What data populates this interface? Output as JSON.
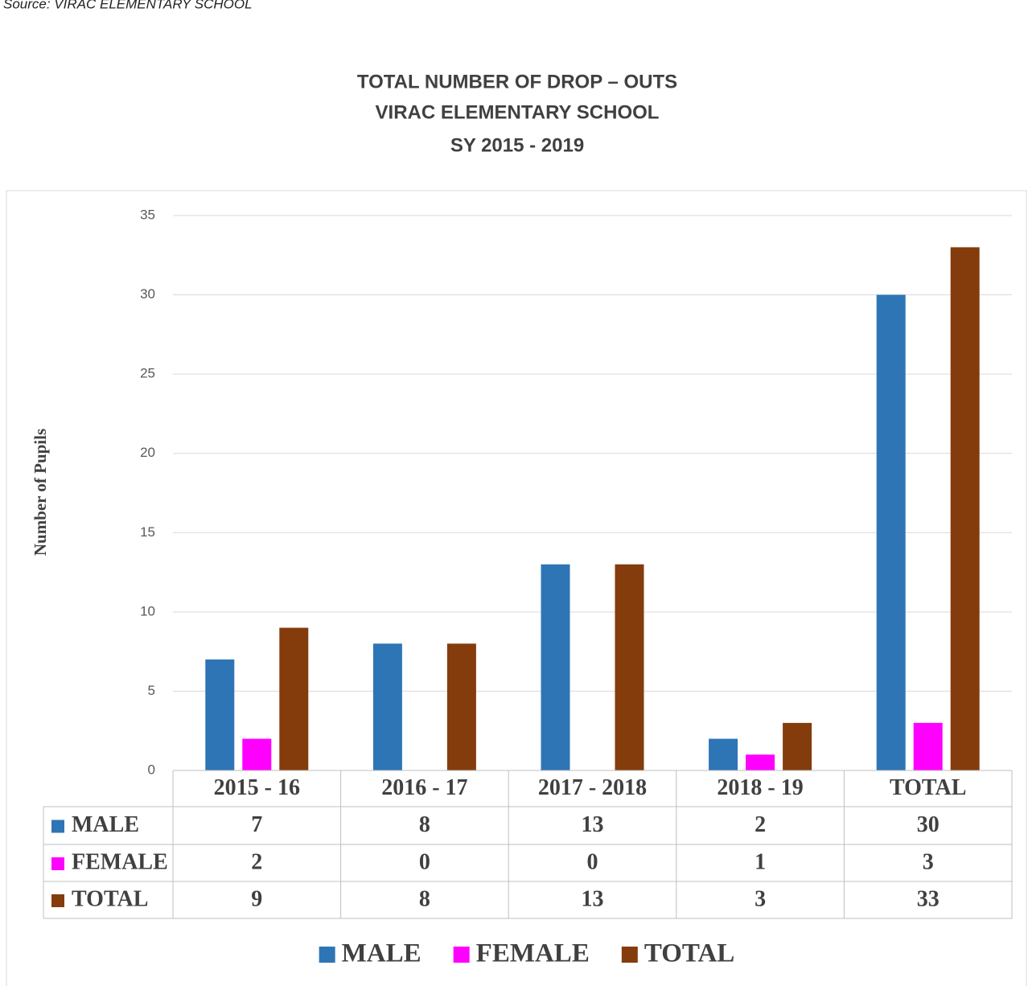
{
  "source": "Source: VIRAC ELEMENTARY SCHOOL",
  "chart_data": {
    "type": "bar",
    "title": [
      "TOTAL NUMBER OF DROP – OUTS",
      "VIRAC ELEMENTARY SCHOOL",
      "SY 2015 - 2019"
    ],
    "y_label": "Number of Pupils",
    "categories": [
      "2015 - 16",
      "2016 - 17",
      "2017 - 2018",
      "2018 - 19",
      "TOTAL"
    ],
    "series": [
      {
        "name": "MALE",
        "color": "#2e75b6",
        "values": [
          7,
          8,
          13,
          2,
          30
        ]
      },
      {
        "name": "FEMALE",
        "color": "#ff00ff",
        "values": [
          2,
          0,
          0,
          1,
          3
        ]
      },
      {
        "name": "TOTAL",
        "color": "#843c0c",
        "values": [
          9,
          8,
          13,
          3,
          33
        ]
      }
    ],
    "ylim": [
      0,
      35
    ],
    "yticks": [
      0,
      5,
      10,
      15,
      20,
      25,
      30,
      35
    ],
    "grid": true,
    "data_table": true,
    "legend": "bottom"
  }
}
